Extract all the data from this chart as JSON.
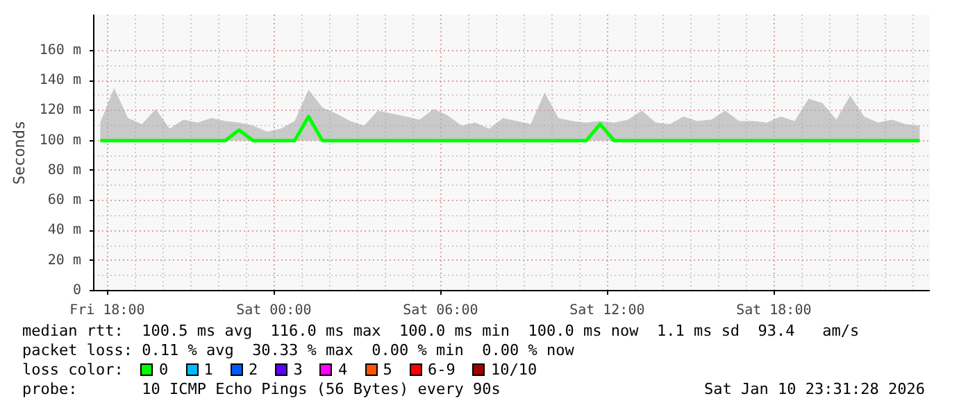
{
  "chart_data": {
    "type": "line",
    "ylabel": "Seconds",
    "legend_title": "loss color:",
    "legend": "bottom",
    "grid": true,
    "marker": "none",
    "line_style": "solid",
    "xlim": [
      "2026-01-09T17:31",
      "2026-01-10T23:37"
    ],
    "xticks": [
      {
        "value": "2026-01-09T18:00",
        "label": "Fri 18:00"
      },
      {
        "value": "2026-01-10T00:00",
        "label": "Sat 00:00"
      },
      {
        "value": "2026-01-10T06:00",
        "label": "Sat 06:00"
      },
      {
        "value": "2026-01-10T12:00",
        "label": "Sat 12:00"
      },
      {
        "value": "2026-01-10T18:00",
        "label": "Sat 18:00"
      }
    ],
    "ylim": [
      0,
      184
    ],
    "yticks": [
      0,
      {
        "value": 20,
        "label": "20 m"
      },
      {
        "value": 40,
        "label": "40 m"
      },
      {
        "value": 60,
        "label": "60 m"
      },
      {
        "value": 80,
        "label": "80 m"
      },
      {
        "value": 100,
        "label": "100 m"
      },
      {
        "value": 120,
        "label": "120 m"
      },
      {
        "value": 140,
        "label": "140 m"
      },
      {
        "value": 160,
        "label": "160 m"
      }
    ],
    "x": [
      "2026-01-09T17:45",
      "2026-01-09T18:15",
      "2026-01-09T18:45",
      "2026-01-09T19:15",
      "2026-01-09T19:45",
      "2026-01-09T20:15",
      "2026-01-09T20:45",
      "2026-01-09T21:15",
      "2026-01-09T21:45",
      "2026-01-09T22:15",
      "2026-01-09T22:45",
      "2026-01-09T23:15",
      "2026-01-09T23:45",
      "2026-01-10T00:15",
      "2026-01-10T00:45",
      "2026-01-10T01:15",
      "2026-01-10T01:45",
      "2026-01-10T02:15",
      "2026-01-10T02:45",
      "2026-01-10T03:15",
      "2026-01-10T03:45",
      "2026-01-10T04:15",
      "2026-01-10T04:45",
      "2026-01-10T05:15",
      "2026-01-10T05:45",
      "2026-01-10T06:15",
      "2026-01-10T06:45",
      "2026-01-10T07:15",
      "2026-01-10T07:45",
      "2026-01-10T08:15",
      "2026-01-10T08:45",
      "2026-01-10T09:15",
      "2026-01-10T09:45",
      "2026-01-10T10:15",
      "2026-01-10T10:45",
      "2026-01-10T11:15",
      "2026-01-10T11:45",
      "2026-01-10T12:15",
      "2026-01-10T12:45",
      "2026-01-10T13:15",
      "2026-01-10T13:45",
      "2026-01-10T14:15",
      "2026-01-10T14:45",
      "2026-01-10T15:15",
      "2026-01-10T15:45",
      "2026-01-10T16:15",
      "2026-01-10T16:45",
      "2026-01-10T17:15",
      "2026-01-10T17:45",
      "2026-01-10T18:15",
      "2026-01-10T18:45",
      "2026-01-10T19:15",
      "2026-01-10T19:45",
      "2026-01-10T20:15",
      "2026-01-10T20:45",
      "2026-01-10T21:15",
      "2026-01-10T21:45",
      "2026-01-10T22:15",
      "2026-01-10T22:45",
      "2026-01-10T23:15"
    ],
    "series": [
      {
        "name": "0",
        "color": "#00ff00",
        "values": [
          100,
          100,
          100,
          100,
          100,
          100,
          100,
          100,
          100,
          100,
          107,
          100,
          100,
          100,
          100,
          116,
          100,
          100,
          100,
          100,
          100,
          100,
          100,
          100,
          100,
          100,
          100,
          100,
          100,
          100,
          100,
          100,
          100,
          100,
          100,
          100,
          111,
          100,
          100,
          100,
          100,
          100,
          100,
          100,
          100,
          100,
          100,
          100,
          100,
          100,
          100,
          100,
          100,
          100,
          100,
          100,
          100,
          100,
          100,
          100
        ],
        "lower": [
          100,
          100,
          100,
          100,
          100,
          100,
          100,
          100,
          100,
          100,
          100,
          100,
          100,
          100,
          100,
          100,
          100,
          100,
          100,
          100,
          100,
          100,
          100,
          100,
          100,
          100,
          100,
          100,
          100,
          100,
          100,
          100,
          100,
          100,
          100,
          100,
          100,
          100,
          100,
          100,
          100,
          100,
          100,
          100,
          100,
          100,
          100,
          100,
          100,
          100,
          100,
          100,
          100,
          100,
          100,
          100,
          100,
          100,
          100,
          100
        ],
        "upper": [
          112,
          135,
          115,
          111,
          121,
          108,
          114,
          112,
          115,
          113,
          112,
          110,
          106,
          108,
          113,
          134,
          122,
          118,
          113,
          110,
          120,
          118,
          116,
          114,
          121,
          117,
          110,
          112,
          108,
          115,
          113,
          111,
          132,
          115,
          113,
          112,
          113,
          112,
          114,
          120,
          112,
          111,
          116,
          113,
          114,
          120,
          113,
          113,
          112,
          116,
          113,
          128,
          125,
          114,
          130,
          116,
          112,
          114,
          111,
          110
        ]
      },
      {
        "name": "1",
        "color": "#00bbff",
        "values": [
          null,
          null,
          null,
          null,
          null,
          null,
          null,
          null,
          null,
          null,
          null,
          null,
          null,
          null,
          null,
          null,
          null,
          null,
          null,
          null,
          null,
          null,
          null,
          null,
          null,
          null,
          null,
          null,
          null,
          null,
          null,
          null,
          null,
          null,
          null,
          null,
          null,
          null,
          null,
          null,
          null,
          null,
          null,
          null,
          null,
          null,
          null,
          null,
          null,
          null,
          null,
          null,
          null,
          null,
          null,
          null,
          null,
          null,
          null,
          null
        ]
      },
      {
        "name": "2",
        "color": "#0059ff",
        "values": [
          null,
          null,
          null,
          null,
          null,
          null,
          null,
          null,
          null,
          null,
          null,
          null,
          null,
          null,
          null,
          null,
          null,
          null,
          null,
          null,
          null,
          null,
          null,
          null,
          null,
          null,
          null,
          null,
          null,
          null,
          null,
          null,
          null,
          null,
          null,
          null,
          null,
          null,
          null,
          null,
          null,
          null,
          null,
          null,
          null,
          null,
          null,
          null,
          null,
          null,
          null,
          null,
          null,
          null,
          null,
          null,
          null,
          null,
          null,
          null
        ]
      },
      {
        "name": "3",
        "color": "#5e00ff",
        "values": [
          null,
          null,
          null,
          null,
          null,
          null,
          null,
          null,
          null,
          null,
          null,
          null,
          null,
          null,
          null,
          null,
          null,
          null,
          null,
          null,
          null,
          null,
          null,
          null,
          null,
          null,
          null,
          null,
          null,
          null,
          null,
          null,
          null,
          null,
          null,
          null,
          null,
          null,
          null,
          null,
          null,
          null,
          null,
          null,
          null,
          null,
          null,
          null,
          null,
          null,
          null,
          null,
          null,
          null,
          null,
          null,
          null,
          null,
          null,
          null
        ]
      },
      {
        "name": "4",
        "color": "#ff00ff",
        "values": [
          null,
          null,
          null,
          null,
          null,
          null,
          null,
          null,
          null,
          null,
          null,
          null,
          null,
          null,
          null,
          null,
          null,
          null,
          null,
          null,
          null,
          null,
          null,
          null,
          null,
          null,
          null,
          null,
          null,
          null,
          null,
          null,
          null,
          null,
          null,
          null,
          null,
          null,
          null,
          null,
          null,
          null,
          null,
          null,
          null,
          null,
          null,
          null,
          null,
          null,
          null,
          null,
          null,
          null,
          null,
          null,
          null,
          null,
          null,
          null
        ]
      },
      {
        "name": "5",
        "color": "#ff5500",
        "values": [
          null,
          null,
          null,
          null,
          null,
          null,
          null,
          null,
          null,
          null,
          null,
          null,
          null,
          null,
          null,
          null,
          null,
          null,
          null,
          null,
          null,
          null,
          null,
          null,
          null,
          null,
          null,
          null,
          null,
          null,
          null,
          null,
          null,
          null,
          null,
          null,
          null,
          null,
          null,
          null,
          null,
          null,
          null,
          null,
          null,
          null,
          null,
          null,
          null,
          null,
          null,
          null,
          null,
          null,
          null,
          null,
          null,
          null,
          null,
          null
        ]
      },
      {
        "name": "6-9",
        "color": "#ff0000",
        "values": [
          null,
          null,
          null,
          null,
          null,
          null,
          null,
          null,
          null,
          null,
          null,
          null,
          null,
          null,
          null,
          null,
          null,
          null,
          null,
          null,
          null,
          null,
          null,
          null,
          null,
          null,
          null,
          null,
          null,
          null,
          null,
          null,
          null,
          null,
          null,
          null,
          null,
          null,
          null,
          null,
          null,
          null,
          null,
          null,
          null,
          null,
          null,
          null,
          null,
          null,
          null,
          null,
          null,
          null,
          null,
          null,
          null,
          null,
          null,
          null
        ]
      },
      {
        "name": "10/10",
        "color": "#a10000",
        "values": [
          null,
          null,
          null,
          null,
          null,
          null,
          null,
          null,
          null,
          null,
          null,
          null,
          null,
          null,
          null,
          null,
          null,
          null,
          null,
          null,
          null,
          null,
          null,
          null,
          null,
          null,
          null,
          null,
          null,
          null,
          null,
          null,
          null,
          null,
          null,
          null,
          null,
          null,
          null,
          null,
          null,
          null,
          null,
          null,
          null,
          null,
          null,
          null,
          null,
          null,
          null,
          null,
          null,
          null,
          null,
          null,
          null,
          null,
          null,
          null
        ]
      }
    ],
    "annotations": [
      "median rtt:  100.5 ms avg  116.0 ms max  100.0 ms min  100.0 ms now  1.1 ms sd  93.4   am/s",
      "packet loss: 0.11 % avg  30.33 % max  0.00 % min  0.00 % now",
      "probe:       10 ICMP Echo Pings (56 Bytes) every 90s",
      "Sat Jan 10 23:31:28 2026"
    ]
  }
}
